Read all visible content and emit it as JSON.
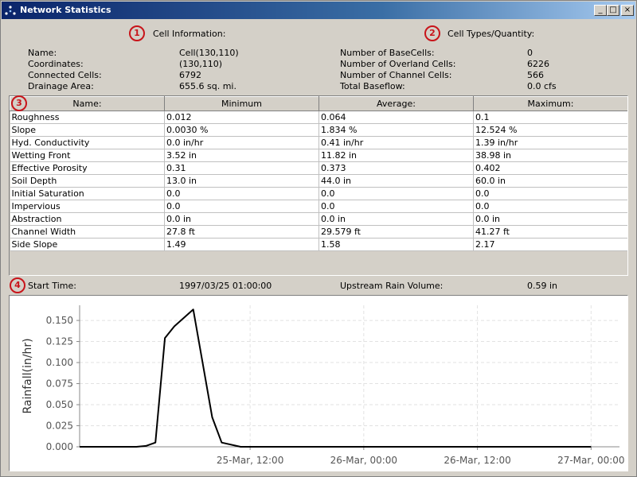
{
  "window": {
    "title": "Network Statistics",
    "minimize": "_",
    "maximize": "□",
    "close": "×"
  },
  "markers": [
    "1",
    "2",
    "3",
    "4"
  ],
  "cell_info": {
    "heading": "Cell Information:",
    "rows": [
      {
        "label": "Name:",
        "value": "Cell(130,110)"
      },
      {
        "label": "Coordinates:",
        "value": "(130,110)"
      },
      {
        "label": "Connected Cells:",
        "value": "6792"
      },
      {
        "label": "Drainage Area:",
        "value": "655.6 sq. mi."
      }
    ]
  },
  "cell_types": {
    "heading": "Cell Types/Quantity:",
    "rows": [
      {
        "label": "Number of BaseCells:",
        "value": "0"
      },
      {
        "label": "Number of Overland Cells:",
        "value": "6226"
      },
      {
        "label": "Number of Channel Cells:",
        "value": "566"
      },
      {
        "label": "Total Baseflow:",
        "value": "0.0 cfs"
      }
    ]
  },
  "table": {
    "headers": [
      "Name:",
      "Minimum",
      "Average:",
      "Maximum:"
    ],
    "rows": [
      [
        "Roughness",
        "0.012",
        "0.064",
        "0.1"
      ],
      [
        "Slope",
        "0.0030 %",
        "1.834 %",
        "12.524 %"
      ],
      [
        "Hyd. Conductivity",
        "0.0 in/hr",
        "0.41 in/hr",
        "1.39 in/hr"
      ],
      [
        "Wetting Front",
        "3.52 in",
        "11.82 in",
        "38.98 in"
      ],
      [
        "Effective Porosity",
        "0.31",
        "0.373",
        "0.402"
      ],
      [
        "Soil Depth",
        "13.0 in",
        "44.0 in",
        "60.0 in"
      ],
      [
        "Initial Saturation",
        "0.0",
        "0.0",
        "0.0"
      ],
      [
        "Impervious",
        "0.0",
        "0.0",
        "0.0"
      ],
      [
        "Abstraction",
        "0.0 in",
        "0.0 in",
        "0.0 in"
      ],
      [
        "Channel Width",
        "27.8 ft",
        "29.579 ft",
        "41.27 ft"
      ],
      [
        "Side Slope",
        "1.49",
        "1.58",
        "2.17"
      ]
    ]
  },
  "rain_info": {
    "start_label": "Start Time:",
    "start_value": "1997/03/25 01:00:00",
    "volume_label": "Upstream Rain Volume:",
    "volume_value": "0.59 in"
  },
  "chart_data": {
    "type": "line",
    "ylabel": "Rainfall(in/hr)",
    "xlabel": "",
    "x_tick_labels": [
      "25-Mar, 12:00",
      "26-Mar, 00:00",
      "26-Mar, 12:00",
      "27-Mar, 00:00"
    ],
    "x_ticks_hours": [
      12,
      24,
      36,
      48
    ],
    "xlim_hours": [
      -6,
      51
    ],
    "y_ticks": [
      0.0,
      0.025,
      0.05,
      0.075,
      0.1,
      0.125,
      0.15
    ],
    "y_tick_labels": [
      "0.000",
      "0.025",
      "0.050",
      "0.075",
      "0.100",
      "0.125",
      "0.150"
    ],
    "ylim": [
      0,
      0.168
    ],
    "x_unit": "hours after 25-Mar 00:00",
    "grid": true,
    "line_color": "#000000",
    "series": [
      {
        "x": [
          -6,
          0,
          1,
          2,
          3,
          4,
          6,
          8,
          9,
          11,
          48
        ],
        "y": [
          0,
          0,
          0.001,
          0.005,
          0.129,
          0.143,
          0.163,
          0.035,
          0.005,
          0,
          0
        ]
      }
    ]
  }
}
